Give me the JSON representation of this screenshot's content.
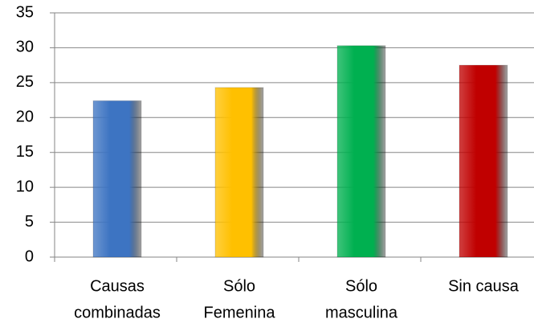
{
  "chart_data": {
    "type": "bar",
    "categories": [
      [
        "Causas",
        "combinadas"
      ],
      [
        "Sólo",
        "Femenina"
      ],
      [
        "Sólo",
        "masculina"
      ],
      [
        "Sin causa"
      ]
    ],
    "values": [
      22.4,
      24.3,
      30.3,
      27.5
    ],
    "colors": [
      "#3d74c2",
      "#ffc000",
      "#00b050",
      "#c00000"
    ],
    "ylim": [
      0,
      35
    ],
    "yticks": [
      0,
      5,
      10,
      15,
      20,
      25,
      30,
      35
    ],
    "grid": true
  }
}
